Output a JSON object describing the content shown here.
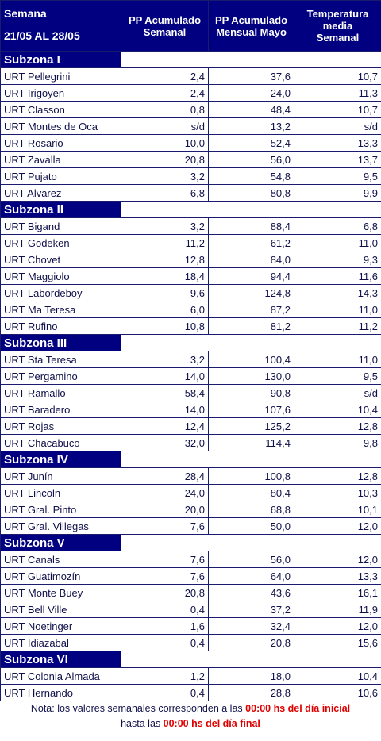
{
  "header": {
    "week_label": "Semana",
    "week_range": "21/05 AL 28/05",
    "columns": [
      [
        "PP Acumulado",
        "Semanal"
      ],
      [
        "PP Acumulado",
        "Mensual Mayo"
      ],
      [
        "Temperatura",
        "media",
        "Semanal"
      ]
    ]
  },
  "sections": [
    {
      "name": "Subzona I",
      "rows": [
        [
          "URT Pellegrini",
          "2,4",
          "37,6",
          "10,7"
        ],
        [
          "URT Irigoyen",
          "2,4",
          "24,0",
          "11,3"
        ],
        [
          "URT Classon",
          "0,8",
          "48,4",
          "10,7"
        ],
        [
          "URT Montes de Oca",
          "s/d",
          "13,2",
          "s/d"
        ],
        [
          "URT Rosario",
          "10,0",
          "52,4",
          "13,3"
        ],
        [
          "URT Zavalla",
          "20,8",
          "56,0",
          "13,7"
        ],
        [
          "URT Pujato",
          "3,2",
          "54,8",
          "9,5"
        ],
        [
          "URT Alvarez",
          "6,8",
          "80,8",
          "9,9"
        ]
      ]
    },
    {
      "name": "Subzona II",
      "rows": [
        [
          "URT Bigand",
          "3,2",
          "88,4",
          "6,8"
        ],
        [
          "URT Godeken",
          "11,2",
          "61,2",
          "11,0"
        ],
        [
          "URT Chovet",
          "12,8",
          "84,0",
          "9,3"
        ],
        [
          "URT Maggiolo",
          "18,4",
          "94,4",
          "11,6"
        ],
        [
          "URT Labordeboy",
          "9,6",
          "124,8",
          "14,3"
        ],
        [
          "URT Ma Teresa",
          "6,0",
          "87,2",
          "11,0"
        ],
        [
          "URT Rufino",
          "10,8",
          "81,2",
          "11,2"
        ]
      ]
    },
    {
      "name": "Subzona III",
      "rows": [
        [
          "URT Sta Teresa",
          "3,2",
          "100,4",
          "11,0"
        ],
        [
          "URT Pergamino",
          "14,0",
          "130,0",
          "9,5"
        ],
        [
          "URT Ramallo",
          "58,4",
          "90,8",
          "s/d"
        ],
        [
          "URT Baradero",
          "14,0",
          "107,6",
          "10,4"
        ],
        [
          "URT Rojas",
          "12,4",
          "125,2",
          "12,8"
        ],
        [
          "URT Chacabuco",
          "32,0",
          "114,4",
          "9,8"
        ]
      ]
    },
    {
      "name": "Subzona IV",
      "rows": [
        [
          "URT Junín",
          "28,4",
          "100,8",
          "12,8"
        ],
        [
          "URT Lincoln",
          "24,0",
          "80,4",
          "10,3"
        ],
        [
          "URT Gral. Pinto",
          "20,0",
          "68,8",
          "10,1"
        ],
        [
          "URT Gral. Villegas",
          "7,6",
          "50,0",
          "12,0"
        ]
      ]
    },
    {
      "name": "Subzona V",
      "rows": [
        [
          "URT Canals",
          "7,6",
          "56,0",
          "12,0"
        ],
        [
          "URT Guatimozín",
          "7,6",
          "64,0",
          "13,3"
        ],
        [
          "URT Monte Buey",
          "20,8",
          "43,6",
          "16,1"
        ],
        [
          "URT Bell Ville",
          "0,4",
          "37,2",
          "11,9"
        ],
        [
          "URT Noetinger",
          "1,6",
          "32,4",
          "12,0"
        ],
        [
          "URT Idiazabal",
          "0,4",
          "20,8",
          "15,6"
        ]
      ]
    },
    {
      "name": "Subzona VI",
      "rows": [
        [
          "URT Colonia Almada",
          "1,2",
          "18,0",
          "10,4"
        ],
        [
          "URT Hernando",
          "0,4",
          "28,8",
          "10,6"
        ]
      ]
    }
  ],
  "note": {
    "text1": "Nota: los valores semanales corresponden a las ",
    "highlight1": "00:00 hs del día inicial",
    "text2": "hasta las ",
    "highlight2": "00:00 hs del día final"
  }
}
